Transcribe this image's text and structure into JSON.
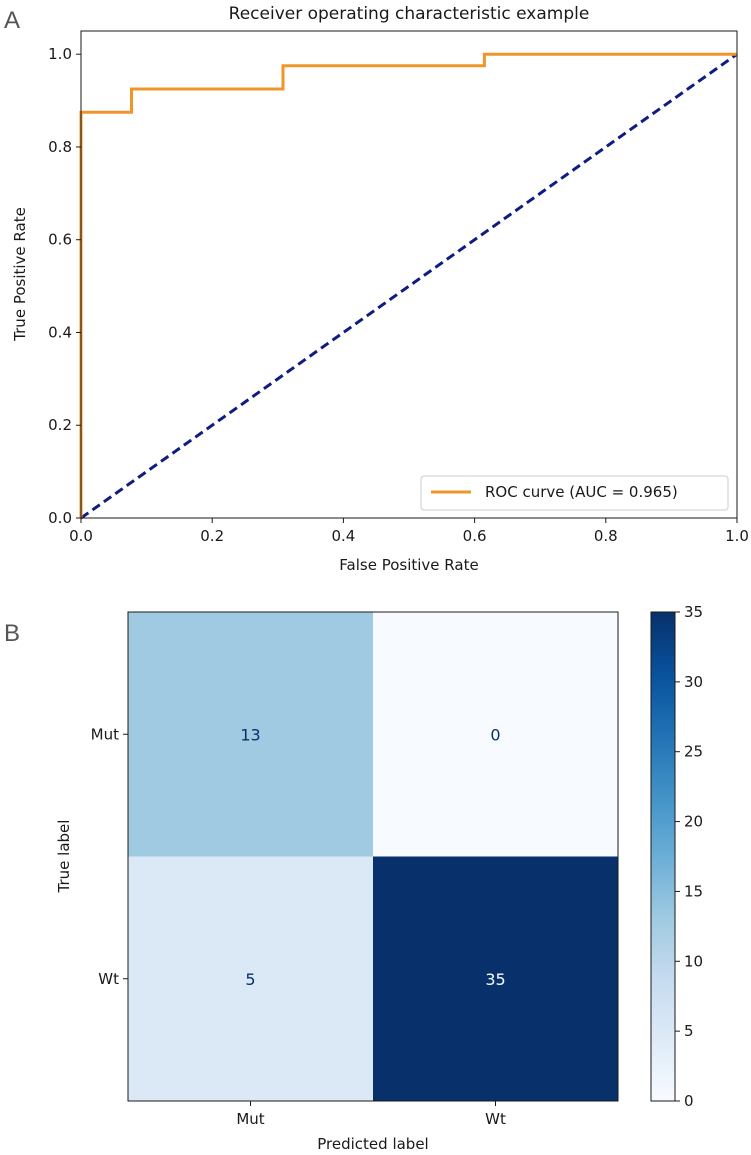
{
  "panels": {
    "a_label": "A",
    "b_label": "B"
  },
  "chart_data": [
    {
      "type": "line",
      "title": "Receiver operating characteristic example",
      "xlabel": "False Positive Rate",
      "ylabel": "True Positive Rate",
      "xlim": [
        0.0,
        1.0
      ],
      "ylim": [
        0.0,
        1.05
      ],
      "xticks": [
        "0.0",
        "0.2",
        "0.4",
        "0.6",
        "0.8",
        "1.0"
      ],
      "yticks": [
        "0.0",
        "0.2",
        "0.4",
        "0.6",
        "0.8",
        "1.0"
      ],
      "grid": false,
      "legend_position": "lower-right",
      "series": [
        {
          "name": "ROC curve (AUC = 0.965)",
          "color": "#f0952a",
          "style": "solid",
          "x": [
            0.0,
            0.0,
            0.077,
            0.077,
            0.308,
            0.308,
            0.615,
            0.615,
            1.0
          ],
          "y": [
            0.0,
            0.875,
            0.875,
            0.925,
            0.925,
            0.975,
            0.975,
            1.0,
            1.0
          ]
        },
        {
          "color": "#0f1c82",
          "style": "dashed",
          "x": [
            0.0,
            1.0
          ],
          "y": [
            0.0,
            1.0
          ]
        }
      ]
    },
    {
      "type": "heatmap",
      "title": "",
      "xlabel": "Predicted label",
      "ylabel": "True label",
      "x_categories": [
        "Mut",
        "Wt"
      ],
      "y_categories": [
        "Mut",
        "Wt"
      ],
      "values": [
        [
          13,
          0
        ],
        [
          5,
          35
        ]
      ],
      "colormap": "Blues",
      "colorbar": {
        "min": 0,
        "max": 35,
        "ticks": [
          "0",
          "5",
          "10",
          "15",
          "20",
          "25",
          "30",
          "35"
        ]
      }
    }
  ]
}
